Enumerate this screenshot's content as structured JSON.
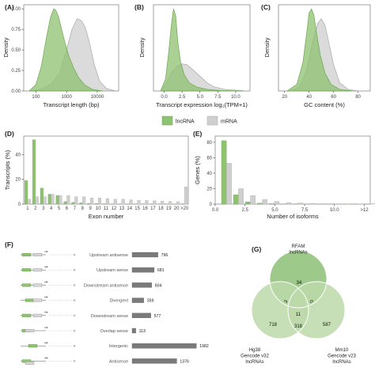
{
  "colors": {
    "lncRNA": "#8dc26f",
    "mRNA": "#cfcfcf",
    "lncRNA_line": "#6aa84f",
    "mRNA_line": "#a8a8a8",
    "dark_bar": "#7a7a7a",
    "venn_top": "#8cbf76",
    "venn_left": "#bcd9a9",
    "venn_right": "#bcd9a9"
  },
  "legend": {
    "items": [
      "lncRNA",
      "mRNA"
    ]
  },
  "panels": {
    "A": {
      "label": "(A)"
    },
    "B": {
      "label": "(B)"
    },
    "C": {
      "label": "(C)"
    },
    "D": {
      "label": "(D)"
    },
    "E": {
      "label": "(E)"
    },
    "F": {
      "label": "(F)"
    },
    "G": {
      "label": "(G)"
    }
  },
  "chart_data": [
    {
      "id": "A",
      "type": "area",
      "xlabel": "Transcript length (bp)",
      "ylabel": "Density",
      "x_scale": "log",
      "xlim": [
        40,
        50000
      ],
      "ylim": [
        0,
        1.05
      ],
      "xticks": [
        100,
        1000,
        10000
      ],
      "xtick_labels": [
        "100",
        "1000",
        "10000"
      ],
      "yticks": [
        0,
        0.25,
        0.5,
        0.75,
        1.0
      ],
      "ytick_labels": [
        "0.00",
        "0.25",
        "0.50",
        "0.75",
        "1.00"
      ],
      "series": [
        {
          "name": "mRNA",
          "x": [
            60,
            150,
            300,
            600,
            1000,
            1500,
            2200,
            3000,
            4000,
            5500,
            8000,
            12000,
            20000,
            40000
          ],
          "y": [
            0.0,
            0.02,
            0.08,
            0.22,
            0.5,
            0.75,
            0.88,
            0.86,
            0.78,
            0.6,
            0.32,
            0.12,
            0.03,
            0.0
          ]
        },
        {
          "name": "lncRNA",
          "x": [
            60,
            100,
            150,
            220,
            300,
            380,
            450,
            550,
            700,
            900,
            1200,
            1700,
            2500,
            4000,
            7000,
            15000
          ],
          "y": [
            0.0,
            0.08,
            0.3,
            0.65,
            0.9,
            1.0,
            0.98,
            0.9,
            0.74,
            0.58,
            0.42,
            0.28,
            0.16,
            0.07,
            0.02,
            0.0
          ]
        }
      ]
    },
    {
      "id": "B",
      "type": "area",
      "xlabel": "Transcript expression log₂(TPM+1)",
      "ylabel": "Density",
      "xlim": [
        -1.5,
        12
      ],
      "ylim": [
        0,
        1.05
      ],
      "xticks": [
        0,
        2.5,
        5,
        7.5,
        10
      ],
      "xtick_labels": [
        "0.0",
        "2.5",
        "5.0",
        "7.5",
        "10.0"
      ],
      "yticks": [],
      "series": [
        {
          "name": "mRNA",
          "x": [
            -0.5,
            0.2,
            1.0,
            1.8,
            2.5,
            3.2,
            4.0,
            5.0,
            6.0,
            7.0,
            8.5,
            10.0,
            11.5
          ],
          "y": [
            0.0,
            0.08,
            0.22,
            0.3,
            0.33,
            0.32,
            0.26,
            0.18,
            0.1,
            0.05,
            0.02,
            0.01,
            0.0
          ]
        },
        {
          "name": "lncRNA",
          "x": [
            -0.5,
            0.2,
            0.6,
            1.0,
            1.3,
            1.6,
            1.9,
            2.3,
            2.8,
            3.5,
            4.5,
            6.0,
            8.0,
            11.0
          ],
          "y": [
            0.0,
            0.15,
            0.45,
            0.8,
            1.0,
            0.92,
            0.6,
            0.35,
            0.2,
            0.1,
            0.05,
            0.02,
            0.005,
            0.0
          ]
        }
      ]
    },
    {
      "id": "C",
      "type": "area",
      "xlabel": "GC content (%)",
      "ylabel": "Density",
      "xlim": [
        15,
        90
      ],
      "ylim": [
        0,
        1.05
      ],
      "xticks": [
        20,
        40,
        60,
        80
      ],
      "xtick_labels": [
        "20",
        "40",
        "60",
        "80"
      ],
      "yticks": [],
      "series": [
        {
          "name": "mRNA",
          "x": [
            25,
            32,
            38,
            43,
            47,
            50,
            53,
            56,
            60,
            65,
            72,
            80
          ],
          "y": [
            0.0,
            0.05,
            0.25,
            0.6,
            0.82,
            0.88,
            0.8,
            0.6,
            0.32,
            0.1,
            0.02,
            0.0
          ]
        },
        {
          "name": "lncRNA",
          "x": [
            22,
            30,
            35,
            38,
            40,
            42,
            44,
            46,
            49,
            53,
            58,
            65,
            75
          ],
          "y": [
            0.0,
            0.08,
            0.35,
            0.7,
            0.95,
            1.0,
            0.92,
            0.72,
            0.45,
            0.22,
            0.08,
            0.02,
            0.0
          ]
        }
      ]
    },
    {
      "id": "D",
      "type": "bar",
      "xlabel": "Exon number",
      "ylabel": "Transcripts (%)",
      "ylim": [
        0,
        55
      ],
      "yticks": [
        0,
        20,
        40
      ],
      "categories": [
        "1",
        "2",
        "3",
        "4",
        "5",
        "6",
        "7",
        "8",
        "9",
        "10",
        "11",
        "12",
        "13",
        "14",
        "15",
        "16",
        "17",
        "18",
        "19",
        "20",
        ">20"
      ],
      "series": [
        {
          "name": "lncRNA",
          "values": [
            19,
            52,
            13,
            8,
            7,
            2,
            1.5,
            1,
            0.6,
            0.4,
            0.3,
            0.2,
            0.2,
            0.1,
            0.1,
            0.1,
            0.1,
            0.1,
            0.1,
            0.1,
            0.3
          ]
        },
        {
          "name": "mRNA",
          "values": [
            4,
            6,
            6,
            8,
            7,
            7,
            6,
            6,
            5,
            5,
            4.5,
            4,
            4,
            3.5,
            3,
            3,
            2.8,
            2.5,
            2.2,
            2,
            14
          ]
        }
      ]
    },
    {
      "id": "E",
      "type": "bar",
      "xlabel": "Number of isoforms",
      "ylabel": "Genes (%)",
      "ylim": [
        0,
        88
      ],
      "yticks": [
        0,
        20,
        40,
        60,
        80
      ],
      "xlim": [
        0,
        13
      ],
      "xticks": [
        0,
        2.5,
        5,
        7.5,
        10,
        12.5
      ],
      "xtick_labels": [
        "0.0",
        "2.5",
        "5.0",
        "7.5",
        "10.0",
        ">12"
      ],
      "categories": [
        1,
        2,
        3,
        4,
        5,
        6,
        7,
        8,
        9,
        10,
        11,
        12,
        13
      ],
      "series": [
        {
          "name": "lncRNA",
          "values": [
            82,
            12,
            3,
            1.2,
            0.6,
            0.3,
            0.2,
            0.1,
            0.1,
            0.1,
            0.1,
            0.1,
            0.1
          ]
        },
        {
          "name": "mRNA",
          "values": [
            53,
            20,
            11,
            6,
            3.5,
            2,
            1.5,
            1,
            0.7,
            0.5,
            0.4,
            0.3,
            0.8
          ]
        }
      ]
    },
    {
      "id": "F",
      "type": "bar",
      "orientation": "horizontal",
      "categories": [
        "Upstream antisense",
        "Upstream sense",
        "Downstream antisense",
        "Divergent",
        "Downstream sense",
        "Overlap sense",
        "Intergenic",
        "Antisense"
      ],
      "values": [
        796,
        681,
        604,
        359,
        577,
        113,
        1982,
        1376
      ],
      "xlim": [
        0,
        2000
      ]
    },
    {
      "id": "G",
      "type": "venn",
      "sets": [
        {
          "name": "RFAM\nlncRNAs",
          "lines": [
            "RFAM",
            "lncRNAs"
          ]
        },
        {
          "name": "Hg38\nGencode v32\nlncRNAs",
          "lines": [
            "Hg38",
            "Gencode v32",
            "lncRNAs"
          ]
        },
        {
          "name": "Mm10\nGencode v23\nlncRNAs",
          "lines": [
            "Mm10",
            "Gencode v23",
            "lncRNAs"
          ]
        }
      ],
      "regions": {
        "top_only": "34",
        "left_only": "718",
        "right_only": "587",
        "top_left": "3",
        "top_right": "0",
        "left_right": "318",
        "all": "11"
      }
    }
  ]
}
